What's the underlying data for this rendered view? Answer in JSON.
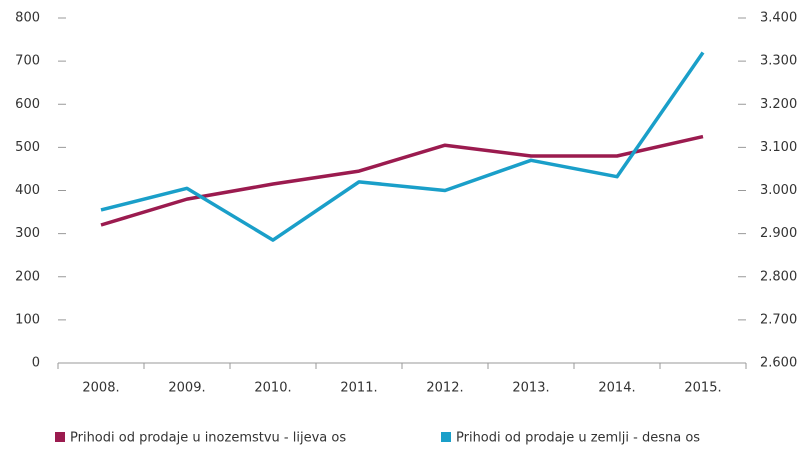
{
  "chart_data": {
    "type": "line",
    "categories": [
      "2008.",
      "2009.",
      "2010.",
      "2011.",
      "2012.",
      "2013.",
      "2014.",
      "2015."
    ],
    "series": [
      {
        "name": "Prihodi od prodaje u inozemstvu - lijeva  os",
        "color": "#9b1b4f",
        "values": [
          320,
          380,
          415,
          445,
          505,
          480,
          480,
          525
        ]
      },
      {
        "name": "Prihodi od prodaje u zemlji - desna os",
        "color": "#1a9fc9",
        "axis": "y2",
        "values": [
          2955,
          3005,
          2885,
          3020,
          3000,
          3070,
          3032,
          3320
        ]
      }
    ],
    "ylim": [
      0,
      800
    ],
    "yticks": [
      0,
      100,
      200,
      300,
      400,
      500,
      600,
      700,
      800
    ],
    "y2lim": [
      2600,
      3400
    ],
    "y2ticks": [
      {
        "value": 2600,
        "label": "2.600"
      },
      {
        "value": 2700,
        "label": "2.700"
      },
      {
        "value": 2800,
        "label": "2.800"
      },
      {
        "value": 2900,
        "label": "2.900"
      },
      {
        "value": 3000,
        "label": "3.000"
      },
      {
        "value": 3100,
        "label": "3.100"
      },
      {
        "value": 3200,
        "label": "3.200"
      },
      {
        "value": 3300,
        "label": "3.300"
      },
      {
        "value": 3400,
        "label": "3.400"
      }
    ],
    "legend": "bottom"
  }
}
